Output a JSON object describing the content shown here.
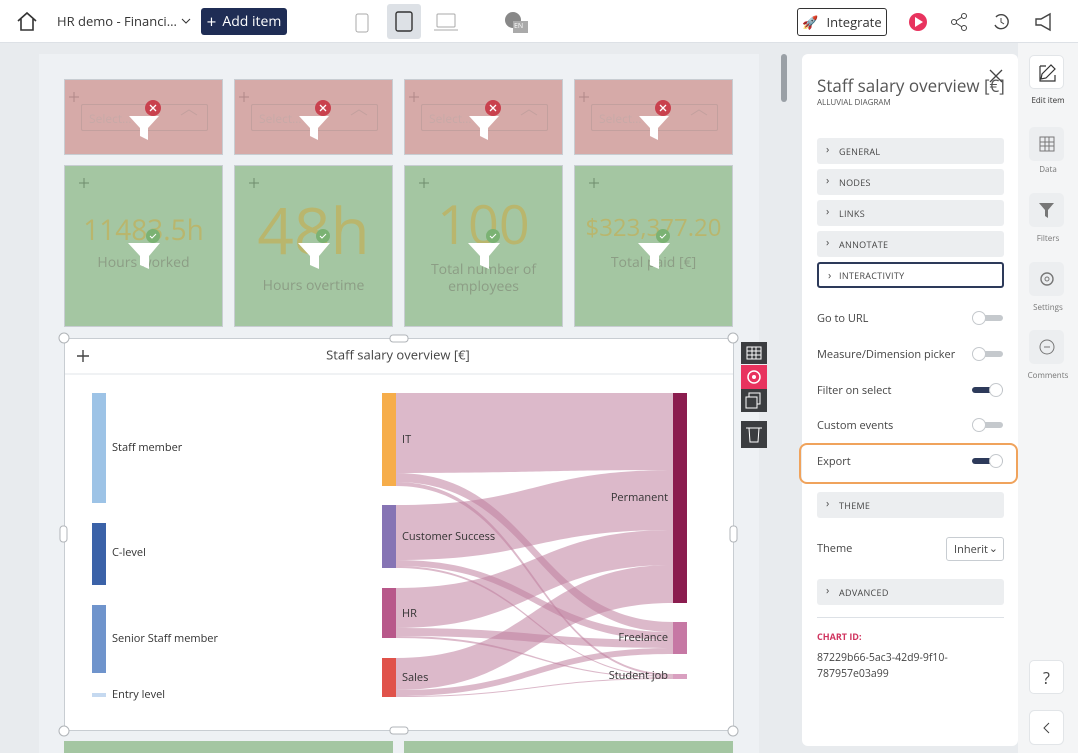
{
  "header": {
    "project": "HR demo - Financi...",
    "add_item": "Add item",
    "language": "EN",
    "integrate": "Integrate"
  },
  "filters": [
    {
      "placeholder": "Select..."
    },
    {
      "placeholder": "Select..."
    },
    {
      "placeholder": "Select..."
    },
    {
      "placeholder": "Select..."
    }
  ],
  "kpis": [
    {
      "value": "11483.5h",
      "label": "Hours worked"
    },
    {
      "value": "48h",
      "label": "Hours overtime"
    },
    {
      "value": "100",
      "label": "Total number of employees"
    },
    {
      "value": "$323,377.20",
      "label": "Total paid [€]"
    }
  ],
  "chart": {
    "title": "Staff salary overview [€]",
    "nodes": {
      "left": [
        "Staff member",
        "C-level",
        "Senior Staff member",
        "Entry level"
      ],
      "middle": [
        "IT",
        "Customer Success",
        "HR",
        "Sales"
      ],
      "right": [
        "Permanent",
        "Freelance",
        "Student job"
      ]
    }
  },
  "panel": {
    "title": "Staff salary overview [€]",
    "subtitle": "ALLUVIAL DIAGRAM",
    "sections": [
      "GENERAL",
      "NODES",
      "LINKS",
      "ANNOTATE"
    ],
    "interactivity": "INTERACTIVITY",
    "toggles": [
      {
        "label": "Go to URL",
        "on": false
      },
      {
        "label": "Measure/Dimension picker",
        "on": false
      },
      {
        "label": "Filter on select",
        "on": true
      },
      {
        "label": "Custom events",
        "on": false
      },
      {
        "label": "Export",
        "on": true
      }
    ],
    "theme_section": "THEME",
    "theme_label": "Theme",
    "theme_value": "Inherit",
    "advanced": "ADVANCED",
    "chart_id_label": "CHART ID:",
    "chart_id": "87229b66-5ac3-42d9-9f10-787957e03a99"
  },
  "rail": [
    "Edit item",
    "Data",
    "Filters",
    "Settings",
    "Comments"
  ],
  "help": "?"
}
